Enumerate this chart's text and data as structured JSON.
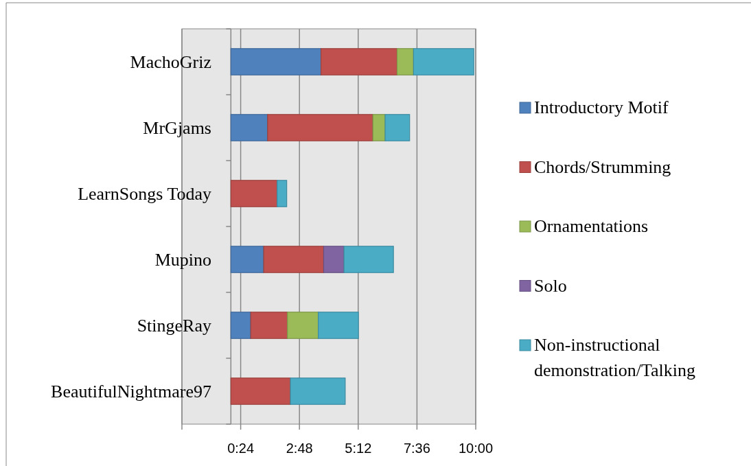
{
  "chart_data": {
    "type": "bar",
    "orientation": "horizontal",
    "stacked": true,
    "categories": [
      "MachoGriz",
      "MrGjams",
      "LearnSongs Today",
      "Mupino",
      "StingeRay",
      "BeautifulNightmare97"
    ],
    "series": [
      {
        "name": "Introductory Motif",
        "color": "#4f81bd",
        "values": [
          3.68,
          1.5,
          null,
          1.34,
          0.81,
          null
        ]
      },
      {
        "name": "Chords/Strumming",
        "color": "#c0504d",
        "values": [
          3.11,
          4.3,
          1.89,
          2.45,
          1.5,
          2.43
        ]
      },
      {
        "name": "Ornamentations",
        "color": "#9bbb59",
        "values": [
          0.67,
          0.5,
          null,
          null,
          1.26,
          null
        ]
      },
      {
        "name": "Solo",
        "color": "#8064a2",
        "values": [
          null,
          null,
          null,
          0.83,
          null,
          null
        ]
      },
      {
        "name": "Non-instructional demonstration/Talking",
        "color": "#4bacc6",
        "values": [
          2.46,
          1.0,
          0.39,
          2.02,
          1.64,
          2.24
        ]
      }
    ],
    "xlim": [
      -2,
      10
    ],
    "xticks": [
      {
        "value": -2,
        "label": null
      },
      {
        "value": 0.4,
        "label": "0:24"
      },
      {
        "value": 2.8,
        "label": "2:48"
      },
      {
        "value": 5.2,
        "label": "5:12"
      },
      {
        "value": 7.6,
        "label": "7:36"
      },
      {
        "value": 10,
        "label": "10:00"
      }
    ],
    "grid": "x",
    "legend": "right"
  }
}
